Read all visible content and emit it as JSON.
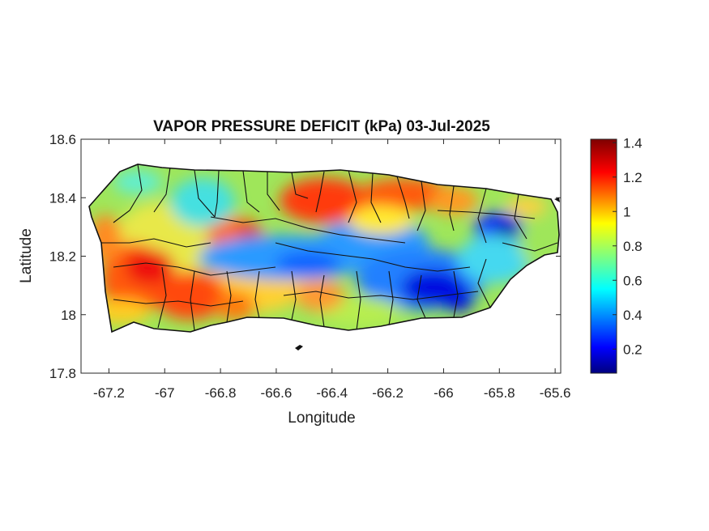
{
  "title": "VAPOR PRESSURE DEFICIT (kPa) 03-Jul-2025",
  "xlabel": "Longitude",
  "ylabel": "Latitude",
  "x_ticks": [
    "-67.2",
    "-67",
    "-66.8",
    "-66.6",
    "-66.4",
    "-66.2",
    "-66",
    "-65.8",
    "-65.6"
  ],
  "y_ticks": [
    "18.6",
    "18.4",
    "18.2",
    "18",
    "17.8"
  ],
  "colorbar": {
    "ticks": [
      "1.4",
      "1.2",
      "1",
      "0.8",
      "0.6",
      "0.4",
      "0.2"
    ],
    "range": [
      0.06,
      1.42
    ],
    "colormap": "jet",
    "colors": [
      "#00007f",
      "#0000ff",
      "#007fff",
      "#00ffff",
      "#7fff7f",
      "#ffff00",
      "#ff7f00",
      "#ff0000",
      "#7f0000"
    ]
  },
  "axes": {
    "xlim": [
      -67.3,
      -65.58
    ],
    "ylim": [
      17.8,
      18.6
    ]
  },
  "map": {
    "region": "Puerto Rico",
    "outline_color": "#111111"
  }
}
